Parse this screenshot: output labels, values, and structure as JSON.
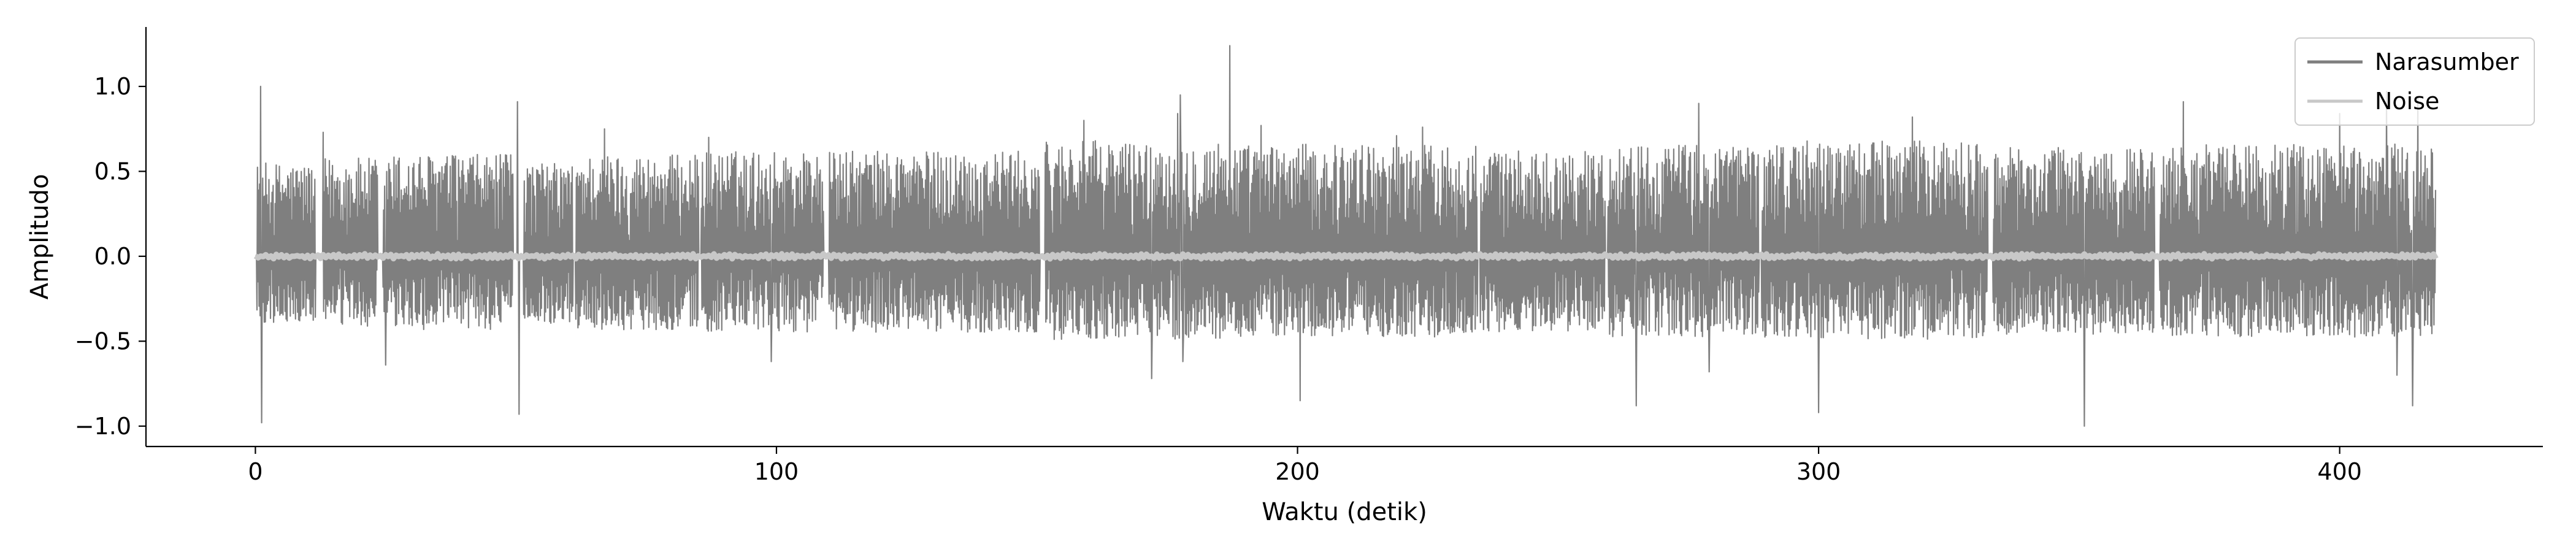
{
  "chart_data": {
    "type": "line",
    "title": "",
    "xlabel": "Waktu (detik)",
    "ylabel": "Amplitudo",
    "xlim": [
      -21,
      439
    ],
    "ylim": [
      -1.12,
      1.35
    ],
    "x_ticks": [
      0,
      100,
      200,
      300,
      400
    ],
    "x_tick_labels": [
      "0",
      "100",
      "200",
      "300",
      "400"
    ],
    "y_ticks": [
      -1.0,
      -0.5,
      0.0,
      0.5,
      1.0
    ],
    "y_tick_labels": [
      "−1.0",
      "−0.5",
      "0.0",
      "0.5",
      "1.0"
    ],
    "grid": false,
    "legend_position": "top-right",
    "x_range": [
      0,
      418.5
    ],
    "series": [
      {
        "name": "Narasumber",
        "color": "#7f7f7f",
        "peaks": [
          {
            "x": 1.0,
            "y": 1.0
          },
          {
            "x": 1.2,
            "y": -0.98
          },
          {
            "x": 13.0,
            "y": 0.73
          },
          {
            "x": 25.0,
            "y": -0.64
          },
          {
            "x": 50.3,
            "y": 0.91
          },
          {
            "x": 50.6,
            "y": -0.93
          },
          {
            "x": 67.0,
            "y": 0.75
          },
          {
            "x": 87.0,
            "y": 0.7
          },
          {
            "x": 99.0,
            "y": -0.62
          },
          {
            "x": 159.0,
            "y": 0.8
          },
          {
            "x": 172.0,
            "y": -0.72
          },
          {
            "x": 177.0,
            "y": 0.84
          },
          {
            "x": 177.5,
            "y": 0.95
          },
          {
            "x": 178.0,
            "y": -0.62
          },
          {
            "x": 187.0,
            "y": 1.24
          },
          {
            "x": 193.0,
            "y": 0.77
          },
          {
            "x": 200.5,
            "y": -0.85
          },
          {
            "x": 219.0,
            "y": 0.71
          },
          {
            "x": 224.0,
            "y": 0.76
          },
          {
            "x": 265.0,
            "y": -0.88
          },
          {
            "x": 277.0,
            "y": 0.9
          },
          {
            "x": 279.0,
            "y": -0.68
          },
          {
            "x": 300.0,
            "y": -0.92
          },
          {
            "x": 318.0,
            "y": 0.82
          },
          {
            "x": 351.0,
            "y": -1.0
          },
          {
            "x": 370.0,
            "y": 0.91
          },
          {
            "x": 400.0,
            "y": 0.84
          },
          {
            "x": 409.0,
            "y": 0.97
          },
          {
            "x": 411.0,
            "y": -0.7
          },
          {
            "x": 414.0,
            "y": -0.88
          },
          {
            "x": 415.0,
            "y": 0.93
          }
        ],
        "segments": [
          {
            "start": 0.3,
            "end": 11.5,
            "amp": 0.55
          },
          {
            "start": 13.0,
            "end": 23.5,
            "amp": 0.58
          },
          {
            "start": 24.5,
            "end": 49.5,
            "amp": 0.6
          },
          {
            "start": 51.5,
            "end": 61.0,
            "amp": 0.55
          },
          {
            "start": 61.5,
            "end": 85.0,
            "amp": 0.6
          },
          {
            "start": 85.5,
            "end": 109.0,
            "amp": 0.62
          },
          {
            "start": 110.0,
            "end": 150.5,
            "amp": 0.62
          },
          {
            "start": 151.5,
            "end": 186.5,
            "amp": 0.68
          },
          {
            "start": 186.5,
            "end": 234.5,
            "amp": 0.66
          },
          {
            "start": 235.0,
            "end": 259.0,
            "amp": 0.62
          },
          {
            "start": 259.5,
            "end": 288.5,
            "amp": 0.66
          },
          {
            "start": 289.0,
            "end": 332.5,
            "amp": 0.68
          },
          {
            "start": 333.5,
            "end": 364.5,
            "amp": 0.64
          },
          {
            "start": 365.5,
            "end": 418.5,
            "amp": 0.66
          }
        ]
      },
      {
        "name": "Noise",
        "color": "#c8c8c8",
        "amplitude": 0.015
      }
    ]
  }
}
